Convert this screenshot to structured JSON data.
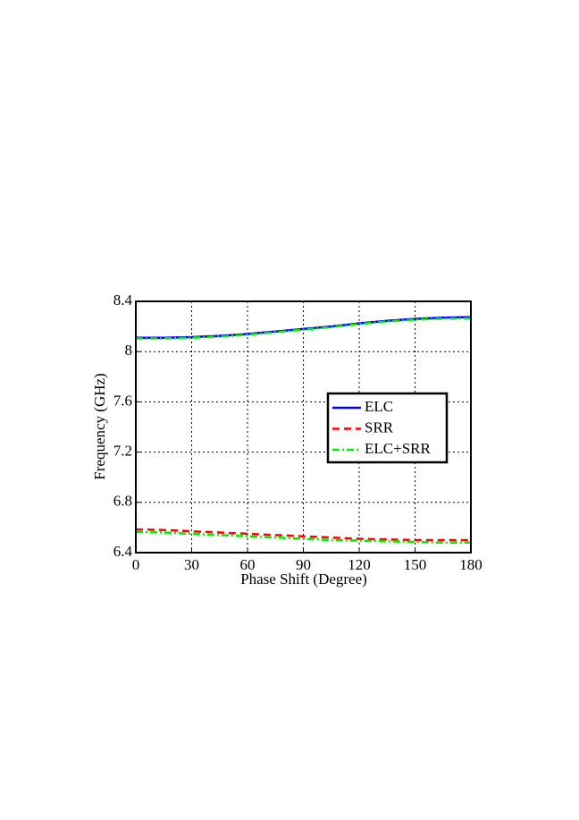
{
  "chart_data": {
    "type": "line",
    "xlabel": "Phase Shift (Degree)",
    "ylabel": "Frequency (GHz)",
    "x": [
      0,
      15,
      30,
      45,
      60,
      75,
      90,
      105,
      120,
      135,
      150,
      165,
      180
    ],
    "xlim": [
      0,
      180
    ],
    "xticks": [
      0,
      30,
      60,
      90,
      120,
      150,
      180
    ],
    "ylim": [
      6.4,
      8.4
    ],
    "yticks": [
      6.4,
      6.8,
      7.2,
      7.6,
      8,
      8.4
    ],
    "grid": true,
    "legend": "right",
    "series": [
      {
        "name": "ELC",
        "color": "#0000ff",
        "style": "solid",
        "branches": [
          [
            8.11,
            8.11,
            8.115,
            8.125,
            8.14,
            8.16,
            8.18,
            8.2,
            8.225,
            8.245,
            8.26,
            8.27,
            8.275
          ]
        ]
      },
      {
        "name": "SRR",
        "color": "#ff0000",
        "style": "dashed",
        "branches": [
          [
            6.585,
            6.58,
            6.57,
            6.56,
            6.55,
            6.54,
            6.53,
            6.52,
            6.51,
            6.505,
            6.5,
            6.5,
            6.5
          ]
        ]
      },
      {
        "name": "ELC+SRR",
        "color": "#00ee00",
        "style": "dashdot",
        "branches": [
          [
            8.105,
            8.105,
            8.11,
            8.12,
            8.135,
            8.155,
            8.175,
            8.195,
            8.22,
            8.24,
            8.255,
            8.262,
            8.265
          ],
          [
            6.565,
            6.56,
            6.55,
            6.54,
            6.53,
            6.52,
            6.51,
            6.5,
            6.495,
            6.49,
            6.485,
            6.48,
            6.48
          ]
        ]
      }
    ]
  }
}
